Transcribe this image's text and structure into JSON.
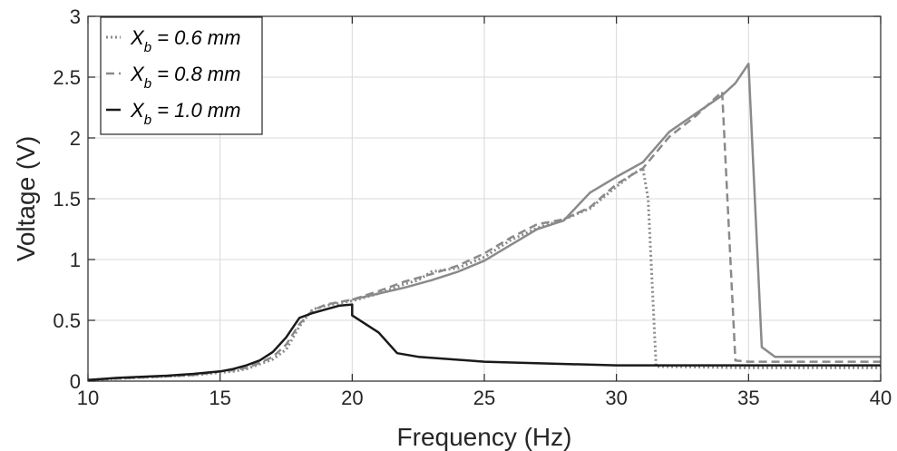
{
  "chart_data": {
    "type": "line",
    "title": "",
    "xlabel": "Frequency (Hz)",
    "ylabel": "Voltage (V)",
    "xlim": [
      10,
      40
    ],
    "ylim": [
      0,
      3
    ],
    "xticks": [
      10,
      15,
      20,
      25,
      30,
      35,
      40
    ],
    "xtick_labels": [
      "10",
      "15",
      "20",
      "25",
      "30",
      "35",
      "40"
    ],
    "yticks": [
      0,
      0.5,
      1,
      1.5,
      2,
      2.5,
      3
    ],
    "ytick_labels": [
      "0",
      "0.5",
      "1",
      "1.5",
      "2",
      "2.5",
      "3"
    ],
    "grid": true,
    "legend_position": "top-left",
    "colors": {
      "gray": "#8a8a8a",
      "dark": "#1a1a1a",
      "grid": "#d9d9d9",
      "axis": "#262626"
    },
    "series": [
      {
        "name": "0.6 mm",
        "legend_prefix": "X",
        "legend_sub": "b",
        "legend_suffix": " = 0.6 mm",
        "style": "dotted",
        "color": "#8a8a8a",
        "x": [
          10,
          11,
          12,
          13,
          14,
          15,
          15.5,
          16,
          16.5,
          17,
          17.5,
          18,
          18.5,
          19,
          19.5,
          20,
          21,
          22,
          22.5,
          23,
          24,
          25,
          26,
          27,
          28,
          29,
          30,
          30.6,
          31,
          31.2,
          31.5,
          35,
          40
        ],
        "values": [
          0.01,
          0.02,
          0.03,
          0.04,
          0.05,
          0.07,
          0.08,
          0.1,
          0.14,
          0.18,
          0.26,
          0.45,
          0.59,
          0.62,
          0.64,
          0.66,
          0.72,
          0.8,
          0.83,
          0.9,
          0.93,
          1.02,
          1.16,
          1.26,
          1.33,
          1.42,
          1.6,
          1.7,
          1.75,
          1.5,
          0.12,
          0.11,
          0.11
        ]
      },
      {
        "name": "0.8 mm",
        "legend_prefix": "X",
        "legend_sub": "b",
        "legend_suffix": " = 0.8 mm",
        "style": "dashed",
        "color": "#8a8a8a",
        "x": [
          10,
          11,
          12,
          13,
          14,
          15,
          15.5,
          16,
          16.5,
          17,
          17.5,
          18,
          18.5,
          19,
          19.5,
          20,
          21,
          22,
          23,
          24,
          25,
          26,
          27,
          28,
          29,
          30,
          31,
          32,
          33,
          34,
          34.5,
          35,
          40
        ],
        "values": [
          0.01,
          0.02,
          0.03,
          0.04,
          0.05,
          0.08,
          0.09,
          0.11,
          0.15,
          0.2,
          0.3,
          0.47,
          0.58,
          0.63,
          0.65,
          0.67,
          0.74,
          0.82,
          0.88,
          0.95,
          1.05,
          1.18,
          1.29,
          1.33,
          1.43,
          1.62,
          1.75,
          2.01,
          2.18,
          2.38,
          0.17,
          0.16,
          0.16
        ]
      },
      {
        "name": "1.0 mm",
        "legend_prefix": "X",
        "legend_sub": "b",
        "legend_suffix": " = 1.0 mm",
        "style": "solid",
        "color": "#8a8a8a",
        "x": [
          20,
          21,
          22,
          23,
          24,
          25,
          26,
          27,
          28,
          29,
          30,
          31,
          32,
          33,
          34,
          34.5,
          35,
          35.5,
          36,
          40
        ],
        "values": [
          0.67,
          0.72,
          0.77,
          0.83,
          0.9,
          0.99,
          1.12,
          1.25,
          1.32,
          1.55,
          1.68,
          1.8,
          2.05,
          2.2,
          2.35,
          2.45,
          2.61,
          0.28,
          0.2,
          0.2
        ]
      },
      {
        "name": "1.0 mm",
        "legend_prefix": "X",
        "legend_sub": "b",
        "legend_suffix": " = 1.0 mm",
        "style": "solid",
        "color": "#1a1a1a",
        "x": [
          10,
          11,
          12,
          13,
          14,
          15,
          15.5,
          16,
          16.5,
          17,
          17.5,
          18,
          18.5,
          19,
          19.5,
          20,
          20,
          21,
          21.7,
          22.5,
          25,
          26.5,
          30,
          35,
          40
        ],
        "values": [
          0.01,
          0.025,
          0.035,
          0.045,
          0.06,
          0.08,
          0.1,
          0.13,
          0.17,
          0.24,
          0.36,
          0.52,
          0.56,
          0.59,
          0.62,
          0.63,
          0.54,
          0.4,
          0.23,
          0.2,
          0.16,
          0.15,
          0.13,
          0.13,
          0.13
        ]
      }
    ],
    "legend_series_indices": [
      0,
      1,
      3
    ]
  }
}
